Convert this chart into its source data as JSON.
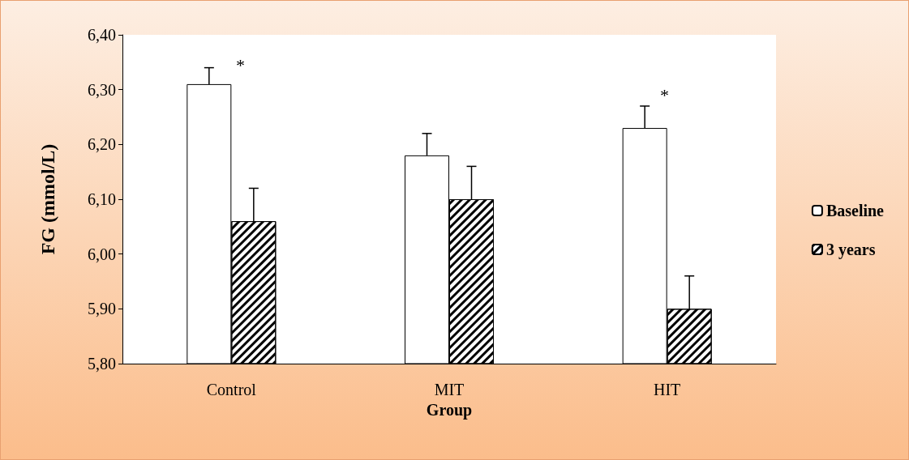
{
  "chart_data": {
    "type": "bar",
    "xlabel": "Group",
    "ylabel": "FG (mmol/L)",
    "categories": [
      "Control",
      "MIT",
      "HIT"
    ],
    "series": [
      {
        "name": "Baseline",
        "color": "#ffffff",
        "values": [
          6.31,
          6.18,
          6.23
        ],
        "errors": [
          [
            6.31,
            6.34
          ],
          [
            6.18,
            6.22
          ],
          [
            6.23,
            6.27
          ]
        ]
      },
      {
        "name": "3 years",
        "color": "#000000",
        "values": [
          6.06,
          6.1,
          5.9
        ],
        "errors": [
          [
            6.06,
            6.12
          ],
          [
            6.1,
            6.16
          ],
          [
            5.9,
            5.96
          ]
        ]
      }
    ],
    "ylim": [
      5.8,
      6.4
    ],
    "yticks": [
      {
        "value": 5.8,
        "label": "5,80"
      },
      {
        "value": 5.9,
        "label": "5,90"
      },
      {
        "value": 6.0,
        "label": "6,00"
      },
      {
        "value": 6.1,
        "label": "6,10"
      },
      {
        "value": 6.2,
        "label": "6,20"
      },
      {
        "value": 6.3,
        "label": "6,30"
      },
      {
        "value": 6.4,
        "label": "6,40"
      }
    ],
    "annotations": [
      "*",
      "*"
    ],
    "grid": false,
    "legend": "right"
  }
}
